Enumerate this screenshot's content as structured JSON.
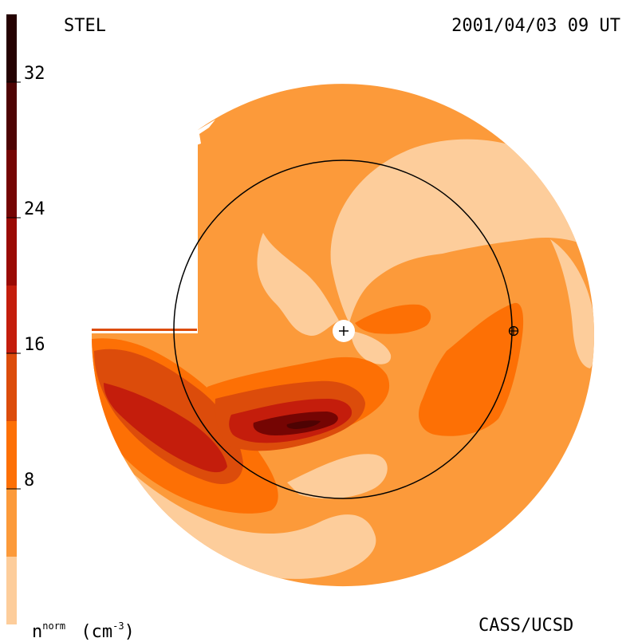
{
  "header": {
    "instrument": "STEL",
    "timestamp": "2001/04/03 09 UT"
  },
  "footer": {
    "credit": "CASS/UCSD"
  },
  "chart_data": {
    "type": "heatmap",
    "title": "",
    "colorbar": {
      "label": "n",
      "label_superscript": "norm",
      "unit_prefix": "(cm",
      "unit_exponent": "-3",
      "unit_suffix": ")",
      "ticks": [
        8,
        16,
        24,
        32
      ],
      "tick_labels": [
        "8",
        "16",
        "24",
        "32"
      ],
      "range": [
        0,
        36
      ],
      "levels": [
        {
          "from": 0,
          "to": 4,
          "color": "#fdcd9b"
        },
        {
          "from": 4,
          "to": 8,
          "color": "#fc9a3a"
        },
        {
          "from": 8,
          "to": 12,
          "color": "#fd7005"
        },
        {
          "from": 12,
          "to": 16,
          "color": "#dc4c0b"
        },
        {
          "from": 16,
          "to": 20,
          "color": "#c41d0c"
        },
        {
          "from": 20,
          "to": 24,
          "color": "#9a0a04"
        },
        {
          "from": 24,
          "to": 28,
          "color": "#750503"
        },
        {
          "from": 28,
          "to": 32,
          "color": "#4e0303"
        },
        {
          "from": 32,
          "to": 36,
          "color": "#250202"
        }
      ]
    },
    "markers": [
      {
        "name": "Sun",
        "symbol": "+"
      },
      {
        "name": "Earth",
        "symbol": "⊕"
      }
    ],
    "reference_circle": "1 AU (Earth orbit)"
  }
}
